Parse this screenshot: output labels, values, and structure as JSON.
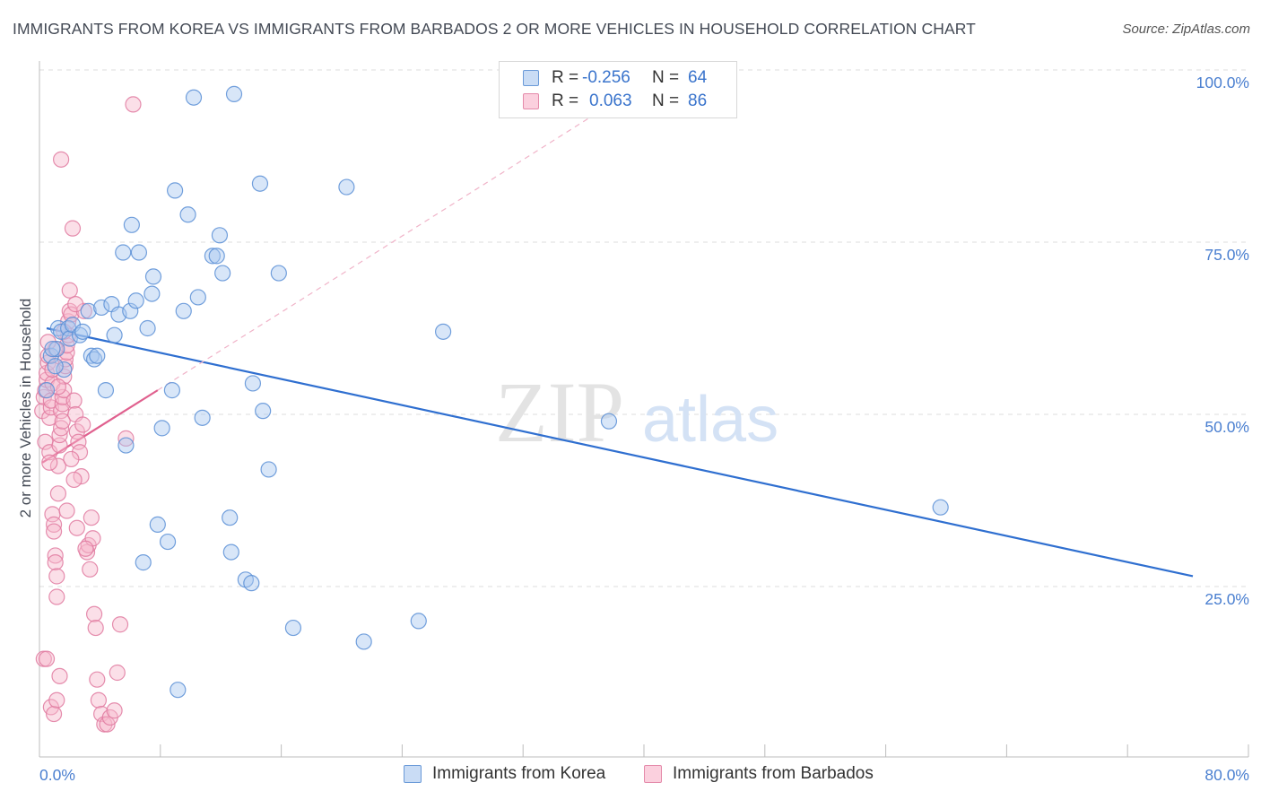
{
  "title": "IMMIGRANTS FROM KOREA VS IMMIGRANTS FROM BARBADOS 2 OR MORE VEHICLES IN HOUSEHOLD CORRELATION CHART",
  "source": "Source: ZipAtlas.com",
  "watermark": {
    "zip": "ZIP",
    "atlas": "atlas"
  },
  "legend": {
    "korea": {
      "r_label": "R =",
      "r_value": "-0.256",
      "n_label": "N =",
      "n_value": "64",
      "color": "#a8c8f0",
      "border": "#5b8fd6"
    },
    "barbados": {
      "r_label": "R =",
      "r_value": "0.063",
      "n_label": "N =",
      "n_value": "86",
      "color": "#f7b8cc",
      "border": "#e07aa0"
    }
  },
  "bottom_legend": {
    "korea": "Immigrants from Korea",
    "barbados": "Immigrants from Barbados"
  },
  "chart_data": {
    "type": "scatter",
    "title": "IMMIGRANTS FROM KOREA VS IMMIGRANTS FROM BARBADOS 2 OR MORE VEHICLES IN HOUSEHOLD CORRELATION CHART",
    "xlabel": "",
    "ylabel": "2 or more Vehicles in Household",
    "xlim": [
      0,
      80
    ],
    "ylim": [
      0,
      100
    ],
    "x_tick_labels": [
      "0.0%",
      "80.0%"
    ],
    "y_tick_labels": [
      "25.0%",
      "50.0%",
      "75.0%",
      "100.0%"
    ],
    "y_ticks": [
      25,
      50,
      75,
      100
    ],
    "series": [
      {
        "name": "Immigrants from Korea",
        "color": "#5b8fd6",
        "fill": "#a8c8f0",
        "trend": {
          "x": [
            0.5,
            80.0
          ],
          "y": [
            62.5,
            26.5
          ],
          "color": "#2f6fd0"
        },
        "points": [
          [
            0.5,
            53.5
          ],
          [
            0.8,
            58.5
          ],
          [
            1.2,
            59.5
          ],
          [
            1.3,
            62.5
          ],
          [
            1.5,
            62.0
          ],
          [
            1.7,
            56.5
          ],
          [
            2.0,
            62.5
          ],
          [
            2.1,
            61.0
          ],
          [
            2.3,
            63.0
          ],
          [
            2.8,
            61.5
          ],
          [
            3.0,
            62.0
          ],
          [
            3.4,
            65.0
          ],
          [
            3.6,
            58.5
          ],
          [
            3.8,
            58.0
          ],
          [
            4.0,
            58.5
          ],
          [
            4.3,
            65.5
          ],
          [
            4.6,
            53.5
          ],
          [
            5.0,
            66.0
          ],
          [
            5.2,
            61.5
          ],
          [
            5.5,
            64.5
          ],
          [
            5.8,
            73.5
          ],
          [
            6.0,
            45.5
          ],
          [
            6.3,
            65.0
          ],
          [
            6.4,
            77.5
          ],
          [
            6.7,
            66.5
          ],
          [
            6.9,
            73.5
          ],
          [
            7.2,
            28.5
          ],
          [
            7.5,
            62.5
          ],
          [
            7.8,
            67.5
          ],
          [
            7.9,
            70.0
          ],
          [
            8.2,
            34.0
          ],
          [
            8.5,
            48.0
          ],
          [
            8.9,
            31.5
          ],
          [
            9.2,
            53.5
          ],
          [
            9.4,
            82.5
          ],
          [
            9.6,
            10.0
          ],
          [
            10.0,
            65.0
          ],
          [
            10.3,
            79.0
          ],
          [
            10.7,
            96.0
          ],
          [
            11.0,
            67.0
          ],
          [
            11.3,
            49.5
          ],
          [
            12.0,
            73.0
          ],
          [
            12.3,
            73.0
          ],
          [
            12.5,
            76.0
          ],
          [
            12.7,
            70.5
          ],
          [
            13.2,
            35.0
          ],
          [
            13.3,
            30.0
          ],
          [
            13.5,
            96.5
          ],
          [
            14.3,
            26.0
          ],
          [
            14.7,
            25.5
          ],
          [
            14.8,
            54.5
          ],
          [
            15.3,
            83.5
          ],
          [
            15.5,
            50.5
          ],
          [
            15.9,
            42.0
          ],
          [
            16.6,
            70.5
          ],
          [
            17.6,
            19.0
          ],
          [
            21.3,
            83.0
          ],
          [
            22.5,
            17.0
          ],
          [
            26.3,
            20.0
          ],
          [
            28.0,
            62.0
          ],
          [
            39.5,
            49.0
          ],
          [
            62.5,
            36.5
          ],
          [
            0.9,
            59.5
          ],
          [
            1.1,
            57.0
          ]
        ]
      },
      {
        "name": "Immigrants from Barbados",
        "color": "#e07aa0",
        "fill": "#f7b8cc",
        "trend": {
          "x": [
            0.2,
            8.2
          ],
          "y": [
            43.0,
            53.5
          ],
          "color": "#e0608e",
          "dashed_extension": {
            "x": [
              8.2,
              40.0
            ],
            "y": [
              53.5,
              95.5
            ]
          }
        },
        "points": [
          [
            0.2,
            50.5
          ],
          [
            0.3,
            52.5
          ],
          [
            0.4,
            46.0
          ],
          [
            0.4,
            53.5
          ],
          [
            0.5,
            55.0
          ],
          [
            0.5,
            56.0
          ],
          [
            0.6,
            57.5
          ],
          [
            0.6,
            58.5
          ],
          [
            0.7,
            49.5
          ],
          [
            0.7,
            44.5
          ],
          [
            0.8,
            51.0
          ],
          [
            0.8,
            52.0
          ],
          [
            0.9,
            54.5
          ],
          [
            0.9,
            35.5
          ],
          [
            1.0,
            34.0
          ],
          [
            1.0,
            33.0
          ],
          [
            1.1,
            29.5
          ],
          [
            1.1,
            28.5
          ],
          [
            1.2,
            26.5
          ],
          [
            1.2,
            23.5
          ],
          [
            1.3,
            38.5
          ],
          [
            1.3,
            42.5
          ],
          [
            1.4,
            45.5
          ],
          [
            1.4,
            47.0
          ],
          [
            1.5,
            48.0
          ],
          [
            1.5,
            50.5
          ],
          [
            1.6,
            51.5
          ],
          [
            1.6,
            52.5
          ],
          [
            1.7,
            53.5
          ],
          [
            1.7,
            55.5
          ],
          [
            1.8,
            57.0
          ],
          [
            1.8,
            58.0
          ],
          [
            1.9,
            59.0
          ],
          [
            1.9,
            60.0
          ],
          [
            2.0,
            61.5
          ],
          [
            2.0,
            63.5
          ],
          [
            2.1,
            65.0
          ],
          [
            2.1,
            68.0
          ],
          [
            2.2,
            64.5
          ],
          [
            2.3,
            77.0
          ],
          [
            2.4,
            52.0
          ],
          [
            2.5,
            50.0
          ],
          [
            2.6,
            47.5
          ],
          [
            2.7,
            46.0
          ],
          [
            2.8,
            44.5
          ],
          [
            2.9,
            41.0
          ],
          [
            3.0,
            48.5
          ],
          [
            3.1,
            65.0
          ],
          [
            3.3,
            30.0
          ],
          [
            3.4,
            31.0
          ],
          [
            3.5,
            27.5
          ],
          [
            3.6,
            35.0
          ],
          [
            3.7,
            32.0
          ],
          [
            3.8,
            21.0
          ],
          [
            3.9,
            19.0
          ],
          [
            4.0,
            11.5
          ],
          [
            4.1,
            8.5
          ],
          [
            4.3,
            6.5
          ],
          [
            4.5,
            5.0
          ],
          [
            4.7,
            5.0
          ],
          [
            4.9,
            6.0
          ],
          [
            5.2,
            7.0
          ],
          [
            5.4,
            12.5
          ],
          [
            5.6,
            19.5
          ],
          [
            6.0,
            46.5
          ],
          [
            6.5,
            95.0
          ],
          [
            0.3,
            14.5
          ],
          [
            0.5,
            14.5
          ],
          [
            0.8,
            7.5
          ],
          [
            1.0,
            6.5
          ],
          [
            1.2,
            8.5
          ],
          [
            1.4,
            12.0
          ],
          [
            1.5,
            87.0
          ],
          [
            1.7,
            62.0
          ],
          [
            2.5,
            66.0
          ],
          [
            1.1,
            59.5
          ],
          [
            0.6,
            60.5
          ],
          [
            0.9,
            56.5
          ],
          [
            1.3,
            54.0
          ],
          [
            1.6,
            49.0
          ],
          [
            2.2,
            43.5
          ],
          [
            2.4,
            40.5
          ],
          [
            0.7,
            43.0
          ],
          [
            1.9,
            36.0
          ],
          [
            2.6,
            33.5
          ],
          [
            3.2,
            30.5
          ]
        ]
      }
    ]
  }
}
